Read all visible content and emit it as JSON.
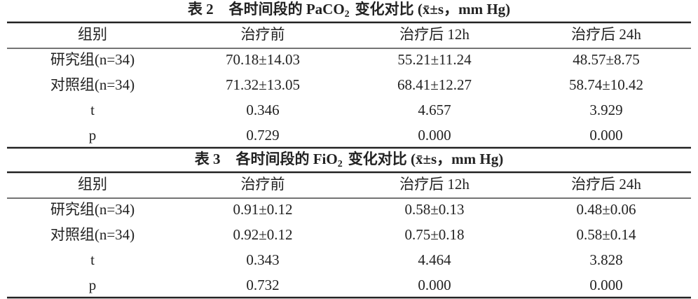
{
  "tables": [
    {
      "title": {
        "label": "表 2",
        "text": "各时间段的 PaCO",
        "sub": "2",
        "suffix": "变化对比 (x̄±s，mm Hg)"
      },
      "header": [
        "组别",
        "治疗前",
        "治疗后 12h",
        "治疗后 24h"
      ],
      "rows": [
        [
          "研究组(n=34)",
          "70.18±14.03",
          "55.21±11.24",
          "48.57±8.75"
        ],
        [
          "对照组(n=34)",
          "71.32±13.05",
          "68.41±12.27",
          "58.74±10.42"
        ],
        [
          "t",
          "0.346",
          "4.657",
          "3.929"
        ],
        [
          "p",
          "0.729",
          "0.000",
          "0.000"
        ]
      ]
    },
    {
      "title": {
        "label": "表 3",
        "text": "各时间段的 FiO",
        "sub": "2",
        "suffix": "变化对比 (x̄±s，mm Hg)"
      },
      "header": [
        "组别",
        "治疗前",
        "治疗后 12h",
        "治疗后 24h"
      ],
      "rows": [
        [
          "研究组(n=34)",
          "0.91±0.12",
          "0.58±0.13",
          "0.48±0.06"
        ],
        [
          "对照组(n=34)",
          "0.92±0.12",
          "0.75±0.18",
          "0.58±0.14"
        ],
        [
          "t",
          "0.343",
          "4.464",
          "3.828"
        ],
        [
          "p",
          "0.732",
          "0.000",
          "0.000"
        ]
      ]
    }
  ]
}
